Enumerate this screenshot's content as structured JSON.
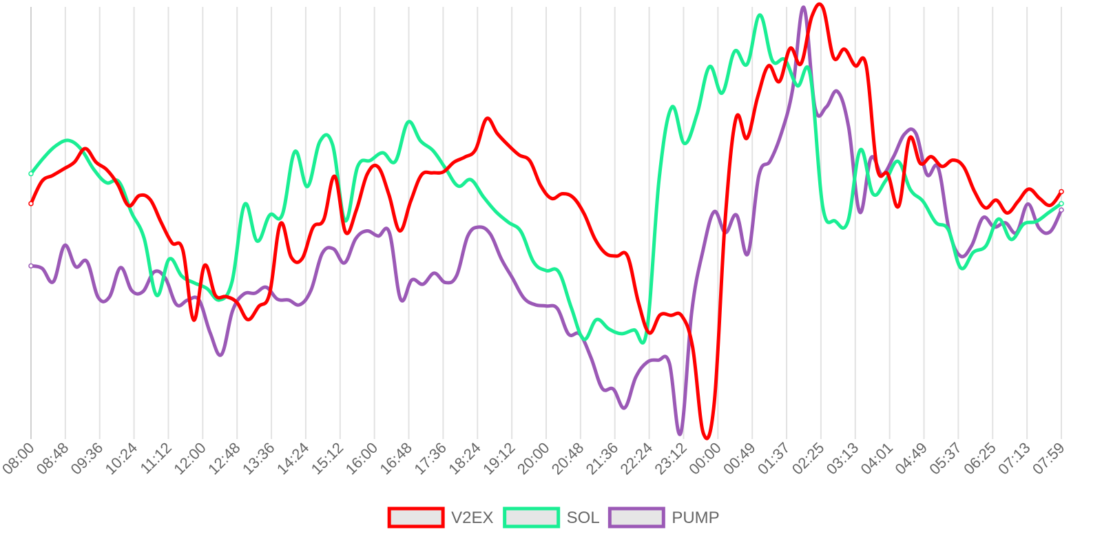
{
  "chart_data": {
    "type": "line",
    "title": "",
    "xlabel": "",
    "ylabel": "",
    "grid": {
      "vertical": true,
      "horizontal": false
    },
    "legend": {
      "placement": "bottom-center"
    },
    "y_axis": {
      "visible": false,
      "range": [
        0,
        100
      ]
    },
    "x_tick_labels": [
      "08:00",
      "08:48",
      "09:36",
      "10:24",
      "11:12",
      "12:00",
      "12:48",
      "13:36",
      "14:24",
      "15:12",
      "16:00",
      "16:48",
      "17:36",
      "18:24",
      "19:12",
      "20:00",
      "20:48",
      "21:36",
      "22:24",
      "23:12",
      "00:00",
      "00:49",
      "01:37",
      "02:25",
      "03:13",
      "04:01",
      "04:49",
      "05:37",
      "06:25",
      "07:13",
      "07:59"
    ],
    "series": [
      {
        "name": "V2EX",
        "color": "#ff0000",
        "values": [
          53.9,
          59.1,
          60.5,
          62.0,
          63.6,
          66.8,
          63.6,
          61.8,
          58.4,
          53.4,
          55.8,
          54.8,
          49.5,
          44.7,
          43.0,
          26.6,
          39.4,
          32.4,
          32.1,
          30.7,
          26.7,
          29.8,
          32.8,
          49.2,
          41.3,
          41.0,
          48.3,
          50.2,
          60.3,
          47.2,
          52.4,
          60.8,
          62.5,
          56.0,
          47.5,
          54.4,
          60.6,
          61.1,
          61.3,
          63.6,
          64.8,
          66.6,
          73.8,
          70.3,
          67.6,
          65.3,
          63.9,
          58.1,
          55.1,
          56.2,
          55.3,
          51.5,
          45.6,
          42.2,
          41.6,
          41.6,
          30.8,
          23.6,
          27.8,
          27.7,
          27.6,
          20.3,
          0.0,
          7.3,
          50.0,
          73.9,
          69.2,
          78.9,
          86.2,
          82.5,
          90.3,
          86.7,
          97.8,
          99.9,
          88.1,
          90.1,
          86.2,
          86.3,
          62.4,
          60.8,
          53.3,
          69.2,
          63.3,
          64.9,
          62.6,
          64.1,
          62.5,
          56.7,
          52.9,
          54.7,
          51.7,
          54.4,
          57.3,
          55.1,
          53.5,
          56.7
        ]
      },
      {
        "name": "SOL",
        "color": "#1aee94",
        "values": [
          60.9,
          64.6,
          67.5,
          68.7,
          66.6,
          61.9,
          58.8,
          59.0,
          51.8,
          45.8,
          32.4,
          40.9,
          36.9,
          35.3,
          34.0,
          31.3,
          35.6,
          53.7,
          45.1,
          51.2,
          51.3,
          66.1,
          57.9,
          68.5,
          67.7,
          49.9,
          62.6,
          64.0,
          65.8,
          63.8,
          73.0,
          68.6,
          66.3,
          62.1,
          58.0,
          59.5,
          55.5,
          52.0,
          49.5,
          47.3,
          40.2,
          38.2,
          37.9,
          29.5,
          22.1,
          26.7,
          24.5,
          23.4,
          24.3,
          24.0,
          60.0,
          76.5,
          68.0,
          74.8,
          86.0,
          79.8,
          89.6,
          86.6,
          98.1,
          87.4,
          87.6,
          81.5,
          84.3,
          53.3,
          49.8,
          49.6,
          66.5,
          56.2,
          59.2,
          63.8,
          57.1,
          54.4,
          49.5,
          47.8,
          38.8,
          42.5,
          44.0,
          50.3,
          45.5,
          49.1,
          49.7,
          51.8,
          53.9
        ]
      },
      {
        "name": "PUMP",
        "color": "#9b59b6",
        "values": [
          39.3,
          38.7,
          35.6,
          44.1,
          39.1,
          40.3,
          31.9,
          32.0,
          38.9,
          33.5,
          33.3,
          37.9,
          36.4,
          30.2,
          31.3,
          31.3,
          23.6,
          18.5,
          28.8,
          32.7,
          32.9,
          34.3,
          31.5,
          31.3,
          30.2,
          33.6,
          42.2,
          43.3,
          40.0,
          45.7,
          47.5,
          46.3,
          47.1,
          31.5,
          36.0,
          35.0,
          37.6,
          35.4,
          37.0,
          46.3,
          48.4,
          46.8,
          40.9,
          36.4,
          31.8,
          30.2,
          29.9,
          29.3,
          23.3,
          23.3,
          17.8,
          10.6,
          10.4,
          6.0,
          13.2,
          16.7,
          17.2,
          16.5,
          0.0,
          28.6,
          42.9,
          52.0,
          47.1,
          51.2,
          42.1,
          60.6,
          63.9,
          70.4,
          80.6,
          99.9,
          76.4,
          76.5,
          80.2,
          71.9,
          51.9,
          64.6,
          60.7,
          64.8,
          70.2,
          70.4,
          60.7,
          62.3,
          47.4,
          41.6,
          44.1,
          50.6,
          48.4,
          49.4,
          47.1,
          53.8,
          48.2,
          47.3,
          52.4
        ]
      }
    ]
  }
}
